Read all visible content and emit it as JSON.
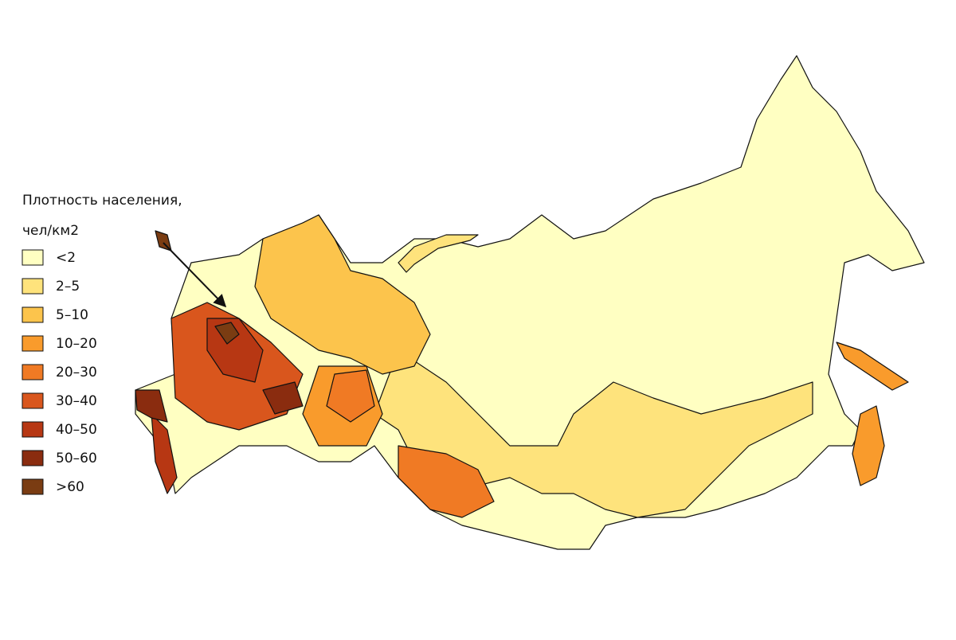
{
  "legend": {
    "title": [
      "Плотность населения,",
      "чел/км2"
    ],
    "items": [
      {
        "label": "<2",
        "color": "#ffffc2"
      },
      {
        "label": "2–5",
        "color": "#fee37c"
      },
      {
        "label": "5–10",
        "color": "#fcc44c"
      },
      {
        "label": "10–20",
        "color": "#f99b2c"
      },
      {
        "label": "20–30",
        "color": "#f07a24"
      },
      {
        "label": "30–40",
        "color": "#d9561d"
      },
      {
        "label": "40–50",
        "color": "#b73713"
      },
      {
        "label": "50–60",
        "color": "#8a2c0f"
      },
      {
        "label": ">60",
        "color": "#7a3c12"
      }
    ]
  }
}
